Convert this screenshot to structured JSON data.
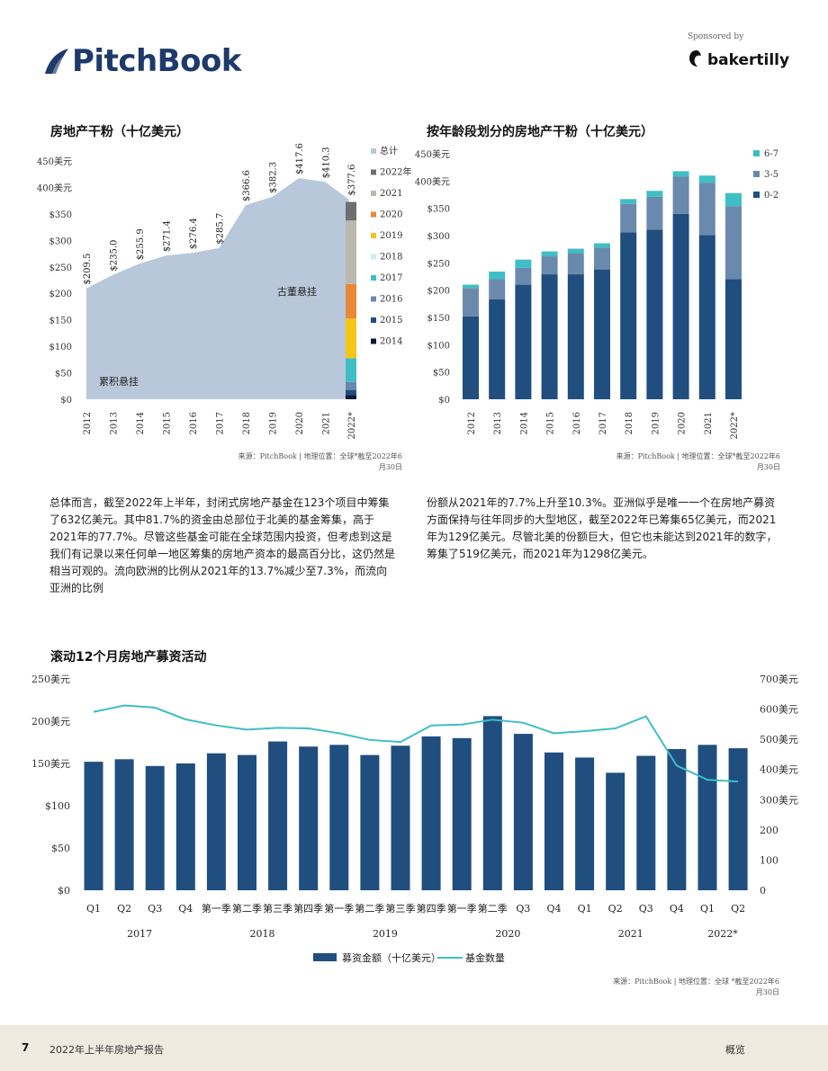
{
  "header": {
    "brand": "PitchBook",
    "sponsor_label": "Sponsored by",
    "sponsor_name": "bakertilly"
  },
  "colors": {
    "navy": "#1f4e7f",
    "steel": "#6a8aad",
    "teal": "#3fbec6",
    "area": "#b8c8da",
    "brand": "#1e3a6b"
  },
  "chart1": {
    "title": "房地产干粉（十亿美元）",
    "source": [
      "来源：PitchBook | 地理位置：全球*截至2022年6",
      "月30日"
    ],
    "annotations": {
      "dry": "古董悬挂",
      "cum": "累积悬挂"
    },
    "chart_data": {
      "type": "area",
      "categories": [
        "2012",
        "2013",
        "2014",
        "2015",
        "2016",
        "2017",
        "2018",
        "2019",
        "2020",
        "2021",
        "2022*"
      ],
      "values": [
        209.5,
        235.0,
        255.9,
        271.4,
        276.4,
        285.7,
        366.6,
        382.3,
        417.6,
        410.3,
        377.6
      ],
      "value_labels": [
        "$209.5",
        "$235.0",
        "$255.9",
        "$271.4",
        "$276.4",
        "$285.7",
        "$366.6",
        "$382.3",
        "$417.6",
        "$410.3",
        "$377.6"
      ],
      "y_ticks": [
        0,
        50,
        100,
        150,
        200,
        250,
        300,
        350,
        400,
        450
      ],
      "y_tick_labels": [
        "$0",
        "$50",
        "$100",
        "$150",
        "$200",
        "$250",
        "$300",
        "$350",
        "400美元",
        "450美元"
      ],
      "ylim": [
        0,
        450
      ],
      "stack_2022": [
        {
          "name": "总计",
          "value": 0,
          "color": "#b8c8da"
        },
        {
          "name": "2022年",
          "value": 35,
          "color": "#6d6e70"
        },
        {
          "name": "2021",
          "value": 120,
          "color": "#bdb8ae"
        },
        {
          "name": "2020",
          "value": 65,
          "color": "#e8883a"
        },
        {
          "name": "2019",
          "value": 75,
          "color": "#f5c518"
        },
        {
          "name": "2018",
          "value": 0,
          "color": "#cdeef1"
        },
        {
          "name": "2017",
          "value": 45,
          "color": "#3fbec6"
        },
        {
          "name": "2016",
          "value": 15,
          "color": "#6a8aad"
        },
        {
          "name": "2015",
          "value": 10,
          "color": "#1f4e7f"
        },
        {
          "name": "2014",
          "value": 7.6,
          "color": "#0b1a33"
        }
      ]
    }
  },
  "chart2": {
    "title": "按年龄段划分的房地产干粉（十亿美元）",
    "source": [
      "来源：PitchBook | 地理位置：全球*截至2022年6",
      "月30日"
    ],
    "chart_data": {
      "type": "bar",
      "categories": [
        "2012",
        "2013",
        "2014",
        "2015",
        "2016",
        "2017",
        "2018",
        "2019",
        "2020",
        "2021",
        "2022*"
      ],
      "series": [
        {
          "name": "0-2",
          "color": "#1f4e7f",
          "values": [
            152,
            183,
            210,
            229,
            229,
            238,
            306,
            311,
            340,
            301,
            220
          ]
        },
        {
          "name": "3-5",
          "color": "#6a8aad",
          "values": [
            52,
            37,
            31,
            33,
            39,
            40,
            52,
            60,
            68,
            96,
            134
          ]
        },
        {
          "name": "6-7",
          "color": "#3fbec6",
          "values": [
            6,
            14,
            15,
            9,
            8,
            8,
            9,
            11,
            10,
            13,
            24
          ]
        }
      ],
      "y_ticks": [
        0,
        50,
        100,
        150,
        200,
        250,
        300,
        350,
        400,
        450
      ],
      "y_tick_labels": [
        "$0",
        "$50",
        "$100",
        "$150",
        "$200",
        "$250",
        "$300",
        "$350",
        "400美元",
        "450美元"
      ],
      "ylim": [
        0,
        450
      ]
    }
  },
  "text": {
    "left": "总体而言，截至2022年上半年，封闭式房地产基金在123个项目中筹集了632亿美元。其中81.7%的资金由总部位于北美的基金筹集，高于2021年的77.7%。尽管这些基金可能在全球范围内投资，但考虑到这是我们有记录以来任何单一地区筹集的房地产资本的最高百分比，这仍然是相当可观的。流向欧洲的比例从2021年的13.7%减少至7.3%，而流向亚洲的比例",
    "right": "份额从2021年的7.7%上升至10.3%。亚洲似乎是唯一一个在房地产募资方面保持与往年同步的大型地区，截至2022年已筹集65亿美元，而2021年为129亿美元。尽管北美的份额巨大，但它也未能达到2021年的数字，筹集了519亿美元，而2021年为1298亿美元。"
  },
  "chart3": {
    "title": "滚动12个月房地产募资活动",
    "source": [
      "来源：PitchBook | 地理位置：全球 *截至2022年6",
      "月30日"
    ],
    "chart_data": {
      "type": "bar",
      "categories": [
        "Q1",
        "Q2",
        "Q3",
        "Q4",
        "第一季",
        "第二季",
        "第三季",
        "第四季",
        "第一季",
        "第二季",
        "第三季",
        "第四季",
        "第一季",
        "第二季",
        "Q3",
        "Q4",
        "Q1",
        "Q2",
        "Q3",
        "Q4",
        "Q1",
        "Q2"
      ],
      "years": [
        {
          "label": "2017",
          "start": 0,
          "count": 4
        },
        {
          "label": "2018",
          "start": 4,
          "count": 4
        },
        {
          "label": "2019",
          "start": 8,
          "count": 4
        },
        {
          "label": "2020",
          "start": 12,
          "count": 4
        },
        {
          "label": "2021",
          "start": 16,
          "count": 4
        },
        {
          "label": "2022*",
          "start": 20,
          "count": 2
        }
      ],
      "series": [
        {
          "name": "募资金额（十亿美元）",
          "type": "bar",
          "axis": "left",
          "color": "#1f4e7f",
          "values": [
            152,
            155,
            147,
            150,
            162,
            160,
            176,
            170,
            172,
            160,
            171,
            182,
            180,
            206,
            185,
            163,
            157,
            139,
            159,
            167,
            172,
            168
          ]
        },
        {
          "name": "基金数量",
          "type": "line",
          "axis": "right",
          "color": "#3fbec6",
          "values": [
            591,
            612,
            605,
            566,
            546,
            532,
            538,
            536,
            520,
            498,
            491,
            546,
            549,
            565,
            555,
            520,
            527,
            536,
            576,
            413,
            366,
            360
          ]
        }
      ],
      "y_left_ticks": [
        0,
        50,
        100,
        150,
        200,
        250
      ],
      "y_left_labels": [
        "$0",
        "$50",
        "$100",
        "150美元",
        "200美元",
        "250美元"
      ],
      "ylim_left": [
        0,
        250
      ],
      "y_right_ticks": [
        0,
        100,
        200,
        300,
        400,
        500,
        600,
        700
      ],
      "y_right_labels": [
        "0",
        "100",
        "200",
        "300美元",
        "400美元",
        "500美元",
        "600美元",
        "700美元"
      ],
      "ylim_right": [
        0,
        700
      ],
      "legend": [
        "募资金额（十亿美元）",
        "基金数量"
      ]
    }
  },
  "footer": {
    "page": "7",
    "title": "2022年上半年房地产报告",
    "section": "概览"
  }
}
